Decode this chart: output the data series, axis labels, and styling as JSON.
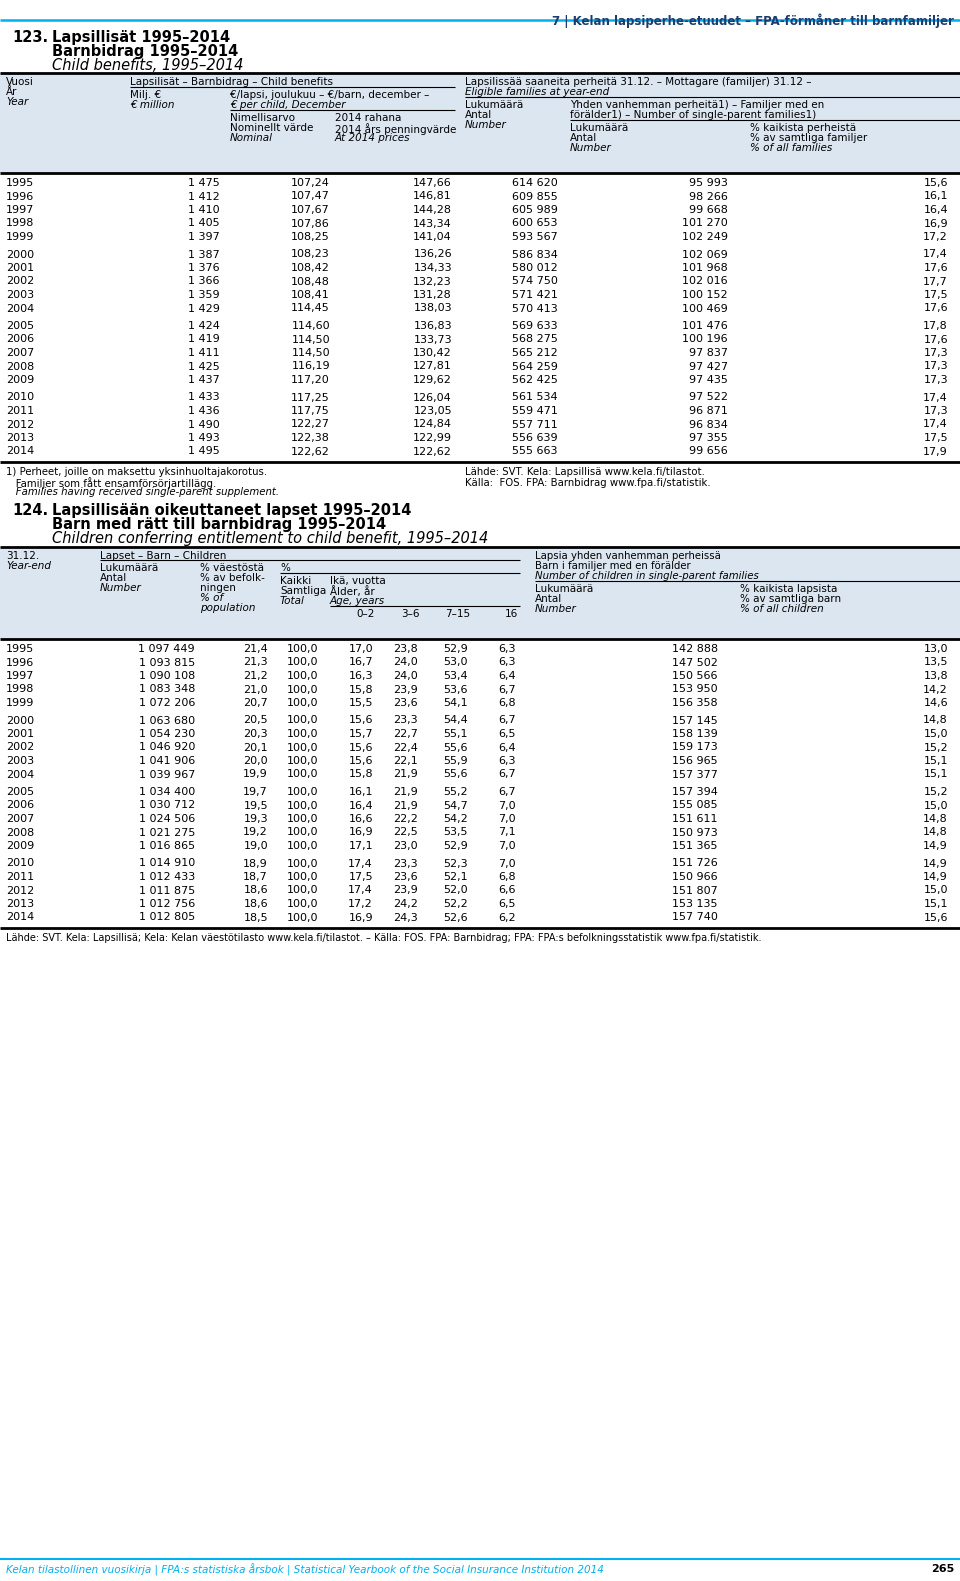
{
  "page_header": "7 | Kelan lapsiperhe-etuudet – FPA-förmåner till barnfamiljer",
  "t1_number": "123.",
  "t1_title_fi": "Lapsillisät 1995–2014",
  "t1_title_sv": "Barnbidrag 1995–2014",
  "t1_title_en": "Child benefits, 1995–2014",
  "t1_data": [
    [
      "1995",
      "1 475",
      "107,24",
      "147,66",
      "614 620",
      "95 993",
      "15,6"
    ],
    [
      "1996",
      "1 412",
      "107,47",
      "146,81",
      "609 855",
      "98 266",
      "16,1"
    ],
    [
      "1997",
      "1 410",
      "107,67",
      "144,28",
      "605 989",
      "99 668",
      "16,4"
    ],
    [
      "1998",
      "1 405",
      "107,86",
      "143,34",
      "600 653",
      "101 270",
      "16,9"
    ],
    [
      "1999",
      "1 397",
      "108,25",
      "141,04",
      "593 567",
      "102 249",
      "17,2"
    ],
    [
      "2000",
      "1 387",
      "108,23",
      "136,26",
      "586 834",
      "102 069",
      "17,4"
    ],
    [
      "2001",
      "1 376",
      "108,42",
      "134,33",
      "580 012",
      "101 968",
      "17,6"
    ],
    [
      "2002",
      "1 366",
      "108,48",
      "132,23",
      "574 750",
      "102 016",
      "17,7"
    ],
    [
      "2003",
      "1 359",
      "108,41",
      "131,28",
      "571 421",
      "100 152",
      "17,5"
    ],
    [
      "2004",
      "1 429",
      "114,45",
      "138,03",
      "570 413",
      "100 469",
      "17,6"
    ],
    [
      "2005",
      "1 424",
      "114,60",
      "136,83",
      "569 633",
      "101 476",
      "17,8"
    ],
    [
      "2006",
      "1 419",
      "114,50",
      "133,73",
      "568 275",
      "100 196",
      "17,6"
    ],
    [
      "2007",
      "1 411",
      "114,50",
      "130,42",
      "565 212",
      "97 837",
      "17,3"
    ],
    [
      "2008",
      "1 425",
      "116,19",
      "127,81",
      "564 259",
      "97 427",
      "17,3"
    ],
    [
      "2009",
      "1 437",
      "117,20",
      "129,62",
      "562 425",
      "97 435",
      "17,3"
    ],
    [
      "2010",
      "1 433",
      "117,25",
      "126,04",
      "561 534",
      "97 522",
      "17,4"
    ],
    [
      "2011",
      "1 436",
      "117,75",
      "123,05",
      "559 471",
      "96 871",
      "17,3"
    ],
    [
      "2012",
      "1 490",
      "122,27",
      "124,84",
      "557 711",
      "96 834",
      "17,4"
    ],
    [
      "2013",
      "1 493",
      "122,38",
      "122,99",
      "556 639",
      "97 355",
      "17,5"
    ],
    [
      "2014",
      "1 495",
      "122,62",
      "122,62",
      "555 663",
      "99 656",
      "17,9"
    ]
  ],
  "t1_fn1": "1) Perheet, joille on maksettu yksinhuoltajakorotus.",
  "t1_fn1_sv": "   Familjer som fått ensamförsörjartillägg.",
  "t1_fn1_en": "   Families having received single-parent supplement.",
  "t1_src_fi": "Lähde: SVT. Kela: Lapsillisä www.kela.fi/tilastot.",
  "t1_src_sv": "Källa:  FOS. FPA: Barnbidrag www.fpa.fi/statistik.",
  "t2_number": "124.",
  "t2_title_fi": "Lapsillisään oikeuttaneet lapset 1995–2014",
  "t2_title_sv": "Barn med rätt till barnbidrag 1995–2014",
  "t2_title_en": "Children conferring entitlement to child benefit, 1995–2014",
  "t2_data": [
    [
      "1995",
      "1 097 449",
      "21,4",
      "100,0",
      "17,0",
      "23,8",
      "52,9",
      "6,3",
      "142 888",
      "13,0"
    ],
    [
      "1996",
      "1 093 815",
      "21,3",
      "100,0",
      "16,7",
      "24,0",
      "53,0",
      "6,3",
      "147 502",
      "13,5"
    ],
    [
      "1997",
      "1 090 108",
      "21,2",
      "100,0",
      "16,3",
      "24,0",
      "53,4",
      "6,4",
      "150 566",
      "13,8"
    ],
    [
      "1998",
      "1 083 348",
      "21,0",
      "100,0",
      "15,8",
      "23,9",
      "53,6",
      "6,7",
      "153 950",
      "14,2"
    ],
    [
      "1999",
      "1 072 206",
      "20,7",
      "100,0",
      "15,5",
      "23,6",
      "54,1",
      "6,8",
      "156 358",
      "14,6"
    ],
    [
      "2000",
      "1 063 680",
      "20,5",
      "100,0",
      "15,6",
      "23,3",
      "54,4",
      "6,7",
      "157 145",
      "14,8"
    ],
    [
      "2001",
      "1 054 230",
      "20,3",
      "100,0",
      "15,7",
      "22,7",
      "55,1",
      "6,5",
      "158 139",
      "15,0"
    ],
    [
      "2002",
      "1 046 920",
      "20,1",
      "100,0",
      "15,6",
      "22,4",
      "55,6",
      "6,4",
      "159 173",
      "15,2"
    ],
    [
      "2003",
      "1 041 906",
      "20,0",
      "100,0",
      "15,6",
      "22,1",
      "55,9",
      "6,3",
      "156 965",
      "15,1"
    ],
    [
      "2004",
      "1 039 967",
      "19,9",
      "100,0",
      "15,8",
      "21,9",
      "55,6",
      "6,7",
      "157 377",
      "15,1"
    ],
    [
      "2005",
      "1 034 400",
      "19,7",
      "100,0",
      "16,1",
      "21,9",
      "55,2",
      "6,7",
      "157 394",
      "15,2"
    ],
    [
      "2006",
      "1 030 712",
      "19,5",
      "100,0",
      "16,4",
      "21,9",
      "54,7",
      "7,0",
      "155 085",
      "15,0"
    ],
    [
      "2007",
      "1 024 506",
      "19,3",
      "100,0",
      "16,6",
      "22,2",
      "54,2",
      "7,0",
      "151 611",
      "14,8"
    ],
    [
      "2008",
      "1 021 275",
      "19,2",
      "100,0",
      "16,9",
      "22,5",
      "53,5",
      "7,1",
      "150 973",
      "14,8"
    ],
    [
      "2009",
      "1 016 865",
      "19,0",
      "100,0",
      "17,1",
      "23,0",
      "52,9",
      "7,0",
      "151 365",
      "14,9"
    ],
    [
      "2010",
      "1 014 910",
      "18,9",
      "100,0",
      "17,4",
      "23,3",
      "52,3",
      "7,0",
      "151 726",
      "14,9"
    ],
    [
      "2011",
      "1 012 433",
      "18,7",
      "100,0",
      "17,5",
      "23,6",
      "52,1",
      "6,8",
      "150 966",
      "14,9"
    ],
    [
      "2012",
      "1 011 875",
      "18,6",
      "100,0",
      "17,4",
      "23,9",
      "52,0",
      "6,6",
      "151 807",
      "15,0"
    ],
    [
      "2013",
      "1 012 756",
      "18,6",
      "100,0",
      "17,2",
      "24,2",
      "52,2",
      "6,5",
      "153 135",
      "15,1"
    ],
    [
      "2014",
      "1 012 805",
      "18,5",
      "100,0",
      "16,9",
      "24,3",
      "52,6",
      "6,2",
      "157 740",
      "15,6"
    ]
  ],
  "t2_src": "Lähde: SVT. Kela: Lapsillisä; Kela: Kelan väestötilasto www.kela.fi/tilastot. – Källa: FOS. FPA: Barnbidrag; FPA: FPA:s befolkningsstatistik www.fpa.fi/statistik.",
  "footer_left": "Kelan tilastollinen vuosikirja | FPA:s statistiska årsbok | Statistical Yearbook of the Social Insurance Institution 2014",
  "footer_page": "265",
  "cyan": "#00b0f0",
  "dark_blue": "#1a3c6e",
  "header_bg": "#dce6f1"
}
